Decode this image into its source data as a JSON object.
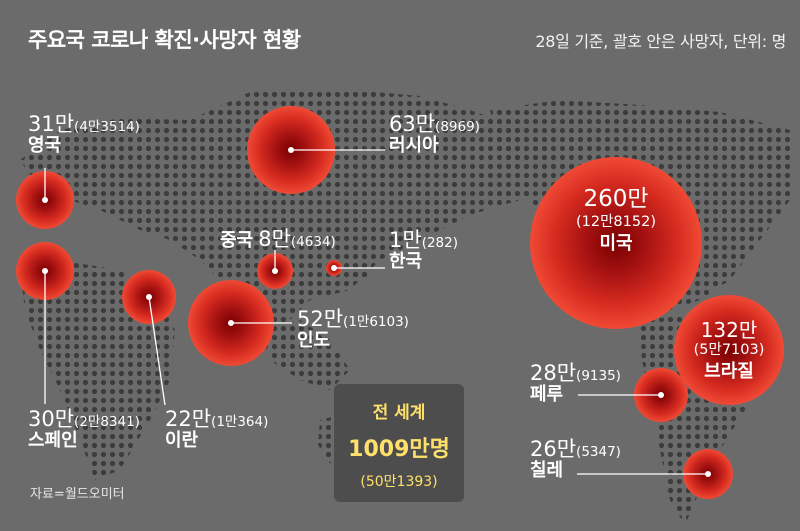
{
  "title": "주요국 코로나 확진·사망자 현황",
  "note": "28일 기준, 괄호 안은 사망자, 단위: 명",
  "source": "자료=월드오미터",
  "colors": {
    "bubble_outer": "#ef3b2c",
    "bubble_inner": "#7a0000",
    "land": "#3a3a3a",
    "world_text": "#ffe06b"
  },
  "countries": [
    {
      "id": "uk",
      "name": "영국",
      "cases": "31만",
      "deaths": "(4만3514)"
    },
    {
      "id": "russia",
      "name": "러시아",
      "cases": "63만",
      "deaths": "(8969)"
    },
    {
      "id": "china",
      "name": "중국",
      "cases": "8만",
      "deaths": "(4634)"
    },
    {
      "id": "korea",
      "name": "한국",
      "cases": "1만",
      "deaths": "(282)"
    },
    {
      "id": "india",
      "name": "인도",
      "cases": "52만",
      "deaths": "(1만6103)"
    },
    {
      "id": "spain",
      "name": "스페인",
      "cases": "30만",
      "deaths": "(2만8341)"
    },
    {
      "id": "iran",
      "name": "이란",
      "cases": "22만",
      "deaths": "(1만364)"
    },
    {
      "id": "usa",
      "name": "미국",
      "cases": "260만",
      "deaths": "(12만8152)"
    },
    {
      "id": "brazil",
      "name": "브라질",
      "cases": "132만",
      "deaths": "(5만7103)"
    },
    {
      "id": "peru",
      "name": "페루",
      "cases": "28만",
      "deaths": "(9135)"
    },
    {
      "id": "chile",
      "name": "칠레",
      "cases": "26만",
      "deaths": "(5347)"
    }
  ],
  "world": {
    "label": "전 세계",
    "cases": "1009만명",
    "deaths": "(50만1393)"
  }
}
